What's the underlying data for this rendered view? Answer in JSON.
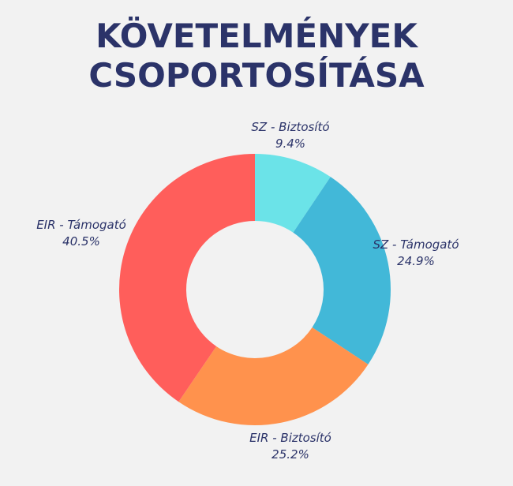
{
  "title_lines": [
    "KÖVETELMÉNYEK",
    "CSOPORTOSÍTÁSA"
  ],
  "chart_data": {
    "type": "pie",
    "style": "donut",
    "title": "KÖVETELMÉNYEK CSOPORTOSÍTÁSA",
    "slices": [
      {
        "label": "SZ - Biztosító",
        "value": 9.4,
        "value_label": "9.4%",
        "color": "#6be3e8"
      },
      {
        "label": "SZ - Támogató",
        "value": 24.9,
        "value_label": "24.9%",
        "color": "#42b8d8"
      },
      {
        "label": "EIR - Biztosító",
        "value": 25.2,
        "value_label": "25.2%",
        "color": "#ff924d"
      },
      {
        "label": "EIR - Támogató",
        "value": 40.5,
        "value_label": "40.5%",
        "color": "#ff5e5b"
      }
    ],
    "legend": "none"
  }
}
